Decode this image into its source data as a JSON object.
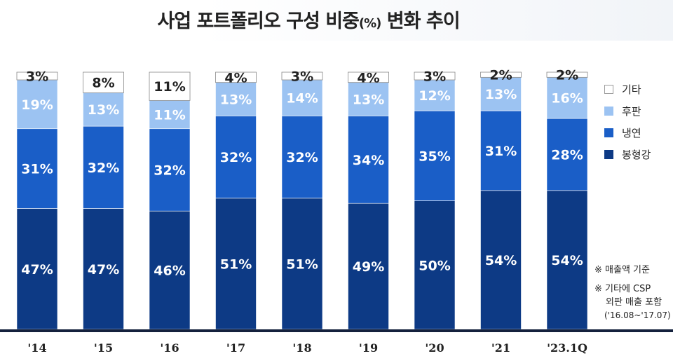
{
  "chart_data": {
    "type": "bar",
    "stacked": true,
    "title": "사업 포트폴리오 구성 비중(%) 변화 추이",
    "categories": [
      "'14",
      "'15",
      "'16",
      "'17",
      "'18",
      "'19",
      "'20",
      "'21",
      "'23.1Q"
    ],
    "series": [
      {
        "name": "봉형강",
        "color": "#0d3a85",
        "values": [
          47,
          47,
          46,
          51,
          51,
          49,
          50,
          54,
          54
        ]
      },
      {
        "name": "냉연",
        "color": "#1a5ec7",
        "values": [
          31,
          32,
          32,
          32,
          32,
          34,
          35,
          31,
          28
        ]
      },
      {
        "name": "후판",
        "color": "#9cc3f2",
        "values": [
          19,
          13,
          11,
          13,
          14,
          13,
          12,
          13,
          16
        ]
      },
      {
        "name": "기타",
        "color": "#ffffff",
        "values": [
          3,
          8,
          11,
          4,
          3,
          4,
          3,
          2,
          2
        ]
      }
    ],
    "ylim": [
      0,
      100
    ],
    "legend": "right"
  },
  "notes": {
    "note1": "※ 매출액 기준",
    "note2_line1": "※ 기타에 CSP",
    "note2_line2": "외판 매출 포함",
    "note2_line3": "('16.08~'17.07)"
  }
}
